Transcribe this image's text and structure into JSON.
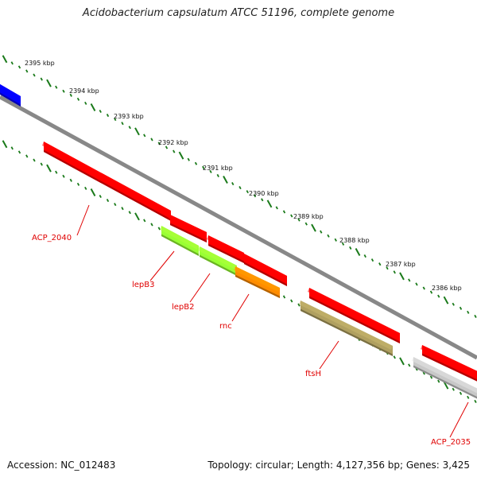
{
  "title": "Acidobacterium capsulatum ATCC 51196, complete genome",
  "footer": {
    "accession": "Accession: NC_012483",
    "topology": "Topology: circular; Length: 4,127,356 bp; Genes: 3,425"
  },
  "colors": {
    "backbone": "#888888",
    "tick": "#1a7a1a",
    "label": "#e00000",
    "red_gene": "#ff0000",
    "blue_gene": "#0000ff",
    "green_gene": "#99ff33",
    "orange_gene": "#ff8c00",
    "olive_gene": "#b0a060",
    "grey_gene": "#c8c8c8"
  },
  "scale_labels": [
    "2395 kbp",
    "2394 kbp",
    "2393 kbp",
    "2392 kbp",
    "2391 kbp",
    "2390 kbp",
    "2389 kbp",
    "2388 kbp",
    "2387 kbp",
    "2386 kbp"
  ],
  "gene_labels": [
    "ACP_2040",
    "lepB3",
    "lepB2",
    "rnc",
    "ftsH",
    "ACP_2035"
  ],
  "genes": [
    {
      "name": "blue-gene",
      "color": "blue_gene"
    },
    {
      "name": "acp2040-gene",
      "color": "red_gene"
    },
    {
      "name": "lepb3-neighbor-gene",
      "color": "red_gene"
    },
    {
      "name": "lepb3-gene",
      "color": "green_gene"
    },
    {
      "name": "lepb2-neighbor-gene",
      "color": "red_gene"
    },
    {
      "name": "lepb2-gene",
      "color": "green_gene"
    },
    {
      "name": "rnc-neighbor-gene",
      "color": "red_gene"
    },
    {
      "name": "rnc-gene",
      "color": "orange_gene"
    },
    {
      "name": "ftsh-neighbor-gene",
      "color": "red_gene"
    },
    {
      "name": "ftsh-gene",
      "color": "olive_gene"
    },
    {
      "name": "acp2035-neighbor-gene",
      "color": "red_gene"
    },
    {
      "name": "acp2035-gene",
      "color": "grey_gene"
    }
  ]
}
